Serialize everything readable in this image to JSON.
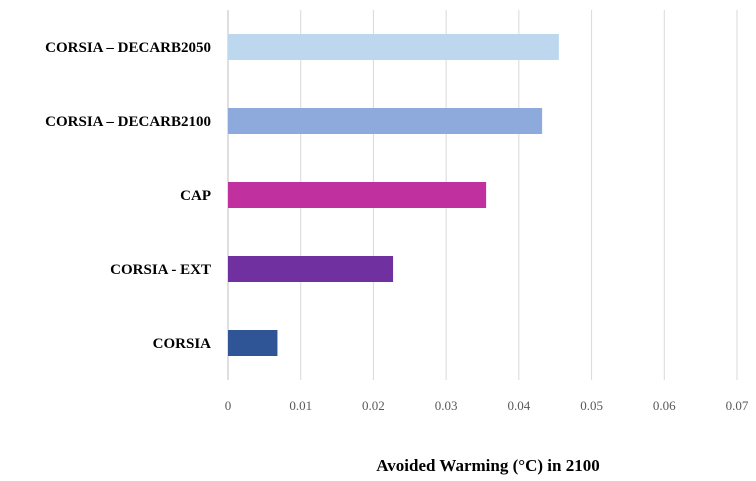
{
  "chart_data": {
    "type": "bar",
    "orientation": "horizontal",
    "categories": [
      "CORSIA – DECARB2050",
      "CORSIA – DECARB2100",
      "CAP",
      "CORSIA - EXT",
      "CORSIA"
    ],
    "values": [
      0.0455,
      0.0432,
      0.0355,
      0.0227,
      0.0068
    ],
    "colors": [
      "#BDD7EE",
      "#8EA9DB",
      "#C0309F",
      "#7030A0",
      "#2F5597"
    ],
    "xlabel": "Avoided Warming (°C) in 2100",
    "ylabel": "",
    "xlim": [
      0,
      0.07
    ],
    "xticks": [
      "0",
      "0.01",
      "0.02",
      "0.03",
      "0.04",
      "0.05",
      "0.06",
      "0.07"
    ],
    "grid": true,
    "legend": "none"
  }
}
